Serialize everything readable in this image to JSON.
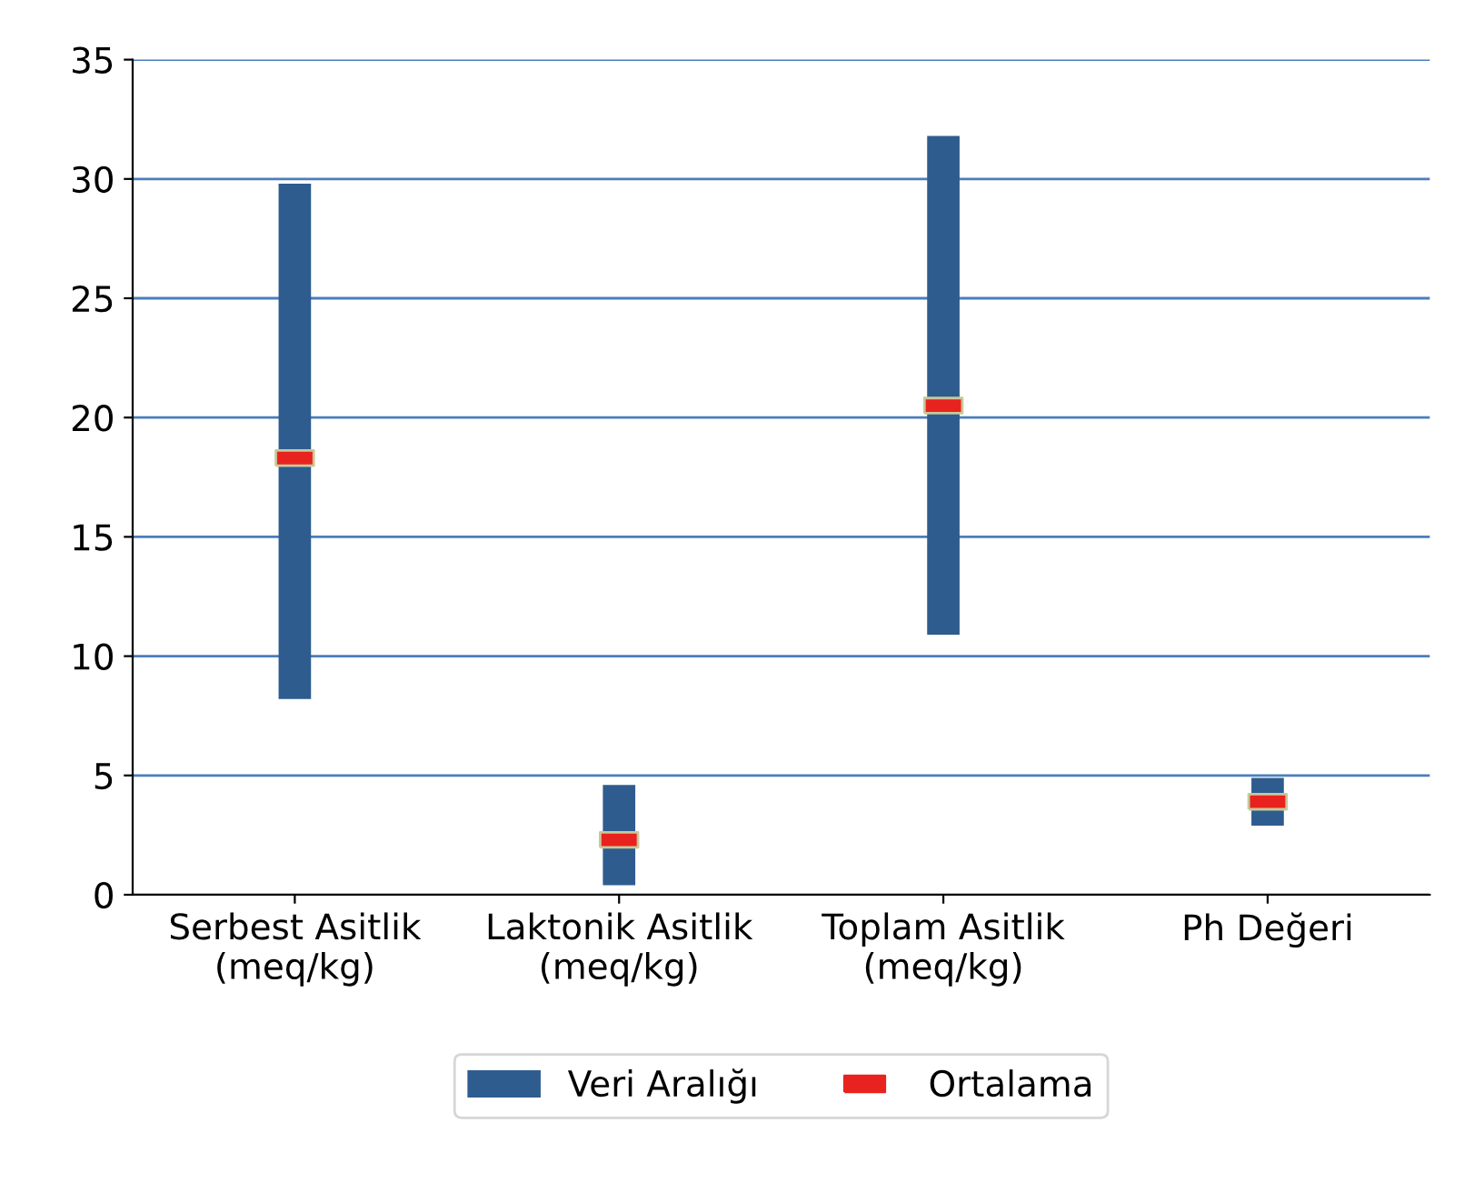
{
  "chart_data": {
    "type": "bar",
    "categories": [
      "Serbest Asitlik\n(meq/kg)",
      "Laktonik Asitlik\n(meq/kg)",
      "Toplam Asitlik\n(meq/kg)",
      "Ph Değeri"
    ],
    "series": [
      {
        "name": "Veri Aralığı",
        "color": "#2e5c8f",
        "base": [
          8.2,
          0.4,
          10.9,
          2.9
        ],
        "values": [
          21.6,
          4.2,
          20.9,
          2.0
        ]
      },
      {
        "name": "Ortalama",
        "type": "scatter",
        "color": "#e8231f",
        "x": [
          "Serbest Asitlik\n(meq/kg)",
          "Laktonik Asitlik\n(meq/kg)",
          "Toplam Asitlik\n(meq/kg)",
          "Ph Değeri"
        ],
        "values": [
          18.3,
          2.3,
          20.5,
          3.9
        ]
      }
    ],
    "ylim": [
      0,
      35
    ],
    "yticks": [
      0,
      5,
      10,
      15,
      20,
      25,
      30,
      35
    ],
    "grid": "y",
    "legend": "bottom"
  }
}
